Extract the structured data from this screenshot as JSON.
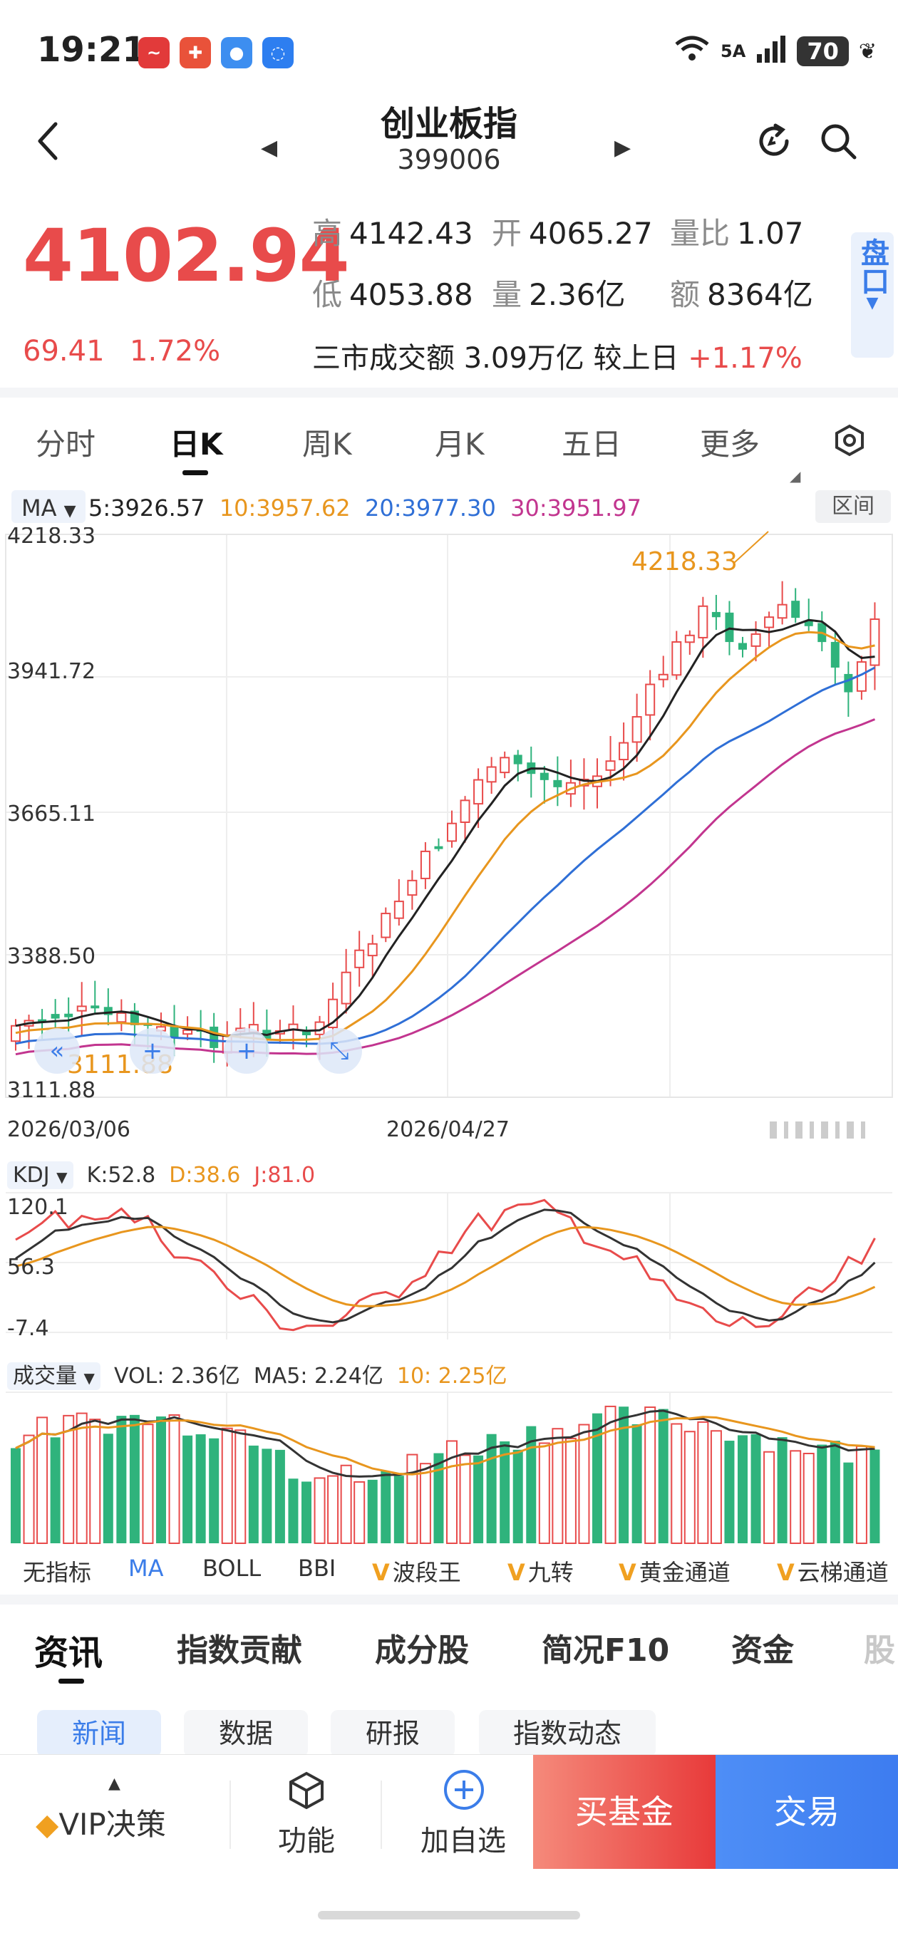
{
  "status_bar": {
    "time": "19:21",
    "network": "5A",
    "battery": "70"
  },
  "header": {
    "title": "创业板指",
    "code": "399006"
  },
  "quote": {
    "price": "4102.94",
    "change": "69.41",
    "change_pct": "1.72%",
    "high_label": "高",
    "high": "4142.43",
    "open_label": "开",
    "open": "4065.27",
    "vol_ratio_label": "量比",
    "vol_ratio": "1.07",
    "low_label": "低",
    "low": "4053.88",
    "volume_label": "量",
    "volume": "2.36亿",
    "amount_label": "额",
    "amount": "8364亿",
    "turnover_text": "三市成交额 3.09万亿 较上日",
    "turnover_change": "+1.17%",
    "pankou": "盘口"
  },
  "period_tabs": [
    "分时",
    "日K",
    "周K",
    "月K",
    "五日",
    "更多"
  ],
  "ma_legend": {
    "selector": "MA",
    "ma5": "5:3926.57",
    "ma10": "10:3957.62",
    "ma20": "20:3977.30",
    "ma30": "30:3951.97",
    "range_btn": "区间"
  },
  "kline": {
    "y_ticks": [
      "4218.33",
      "3941.72",
      "3665.11",
      "3388.50",
      "3111.88"
    ],
    "high_mark": "4218.33",
    "low_mark": "3111.88",
    "dates": [
      "2026/03/06",
      "2026/04/27"
    ],
    "colors": {
      "up": "#e84b4b",
      "down": "#2fb37c",
      "ma5": "#222222",
      "ma10": "#e8961e",
      "ma20": "#2f6fd6",
      "ma30": "#c2358f"
    }
  },
  "kdj": {
    "selector": "KDJ",
    "k": "K:52.8",
    "d": "D:38.6",
    "j": "J:81.0",
    "y_ticks": [
      "120.1",
      "56.3",
      "-7.4"
    ]
  },
  "volume": {
    "selector": "成交量",
    "vol": "VOL: 2.36亿",
    "ma5": "MA5: 2.24亿",
    "ma10": "10: 2.25亿"
  },
  "indicator_tabs": [
    "无指标",
    "MA",
    "BOLL",
    "BBI",
    "波段王",
    "九转",
    "黄金通道",
    "云梯通道"
  ],
  "info_tabs": [
    "资讯",
    "指数贡献",
    "成分股",
    "简况F10",
    "资金",
    "股"
  ],
  "sub_tabs": [
    "新闻",
    "数据",
    "研报",
    "指数动态"
  ],
  "bottom_bar": {
    "vip": "VIP决策",
    "func": "功能",
    "add": "加自选",
    "buy": "买基金",
    "trade": "交易"
  }
}
